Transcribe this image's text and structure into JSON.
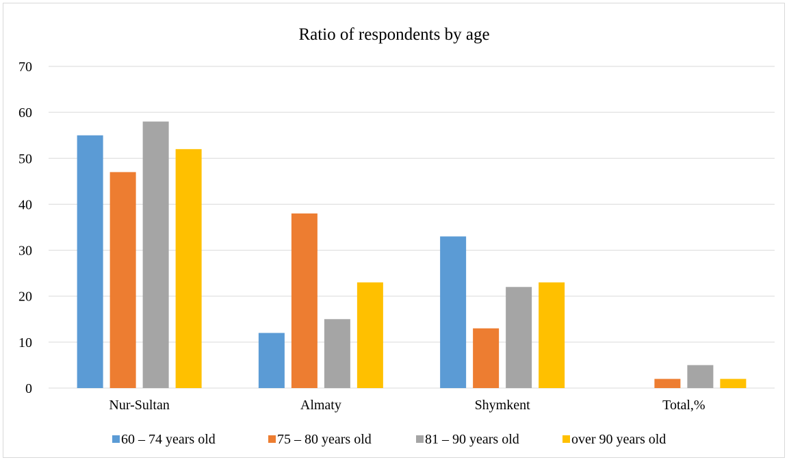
{
  "chart_data": {
    "type": "bar",
    "title": "Ratio of respondents by age",
    "xlabel": "",
    "ylabel": "",
    "categories": [
      "Nur-Sultan",
      "Almaty",
      "Shymkent",
      "Total,%"
    ],
    "series": [
      {
        "name": "60 – 74 years old",
        "color": "#5b9bd5",
        "values": [
          55,
          12,
          33,
          0
        ]
      },
      {
        "name": "75 – 80 years old",
        "color": "#ed7d31",
        "values": [
          47,
          38,
          13,
          2
        ]
      },
      {
        "name": "81 – 90 years old",
        "color": "#a5a5a5",
        "values": [
          58,
          15,
          22,
          5
        ]
      },
      {
        "name": "over 90 years old",
        "color": "#ffc000",
        "values": [
          52,
          23,
          23,
          2
        ]
      }
    ],
    "ylim": [
      0,
      70
    ],
    "yticks": [
      0,
      10,
      20,
      30,
      40,
      50,
      60,
      70
    ],
    "grid": true,
    "legend_position": "bottom"
  }
}
